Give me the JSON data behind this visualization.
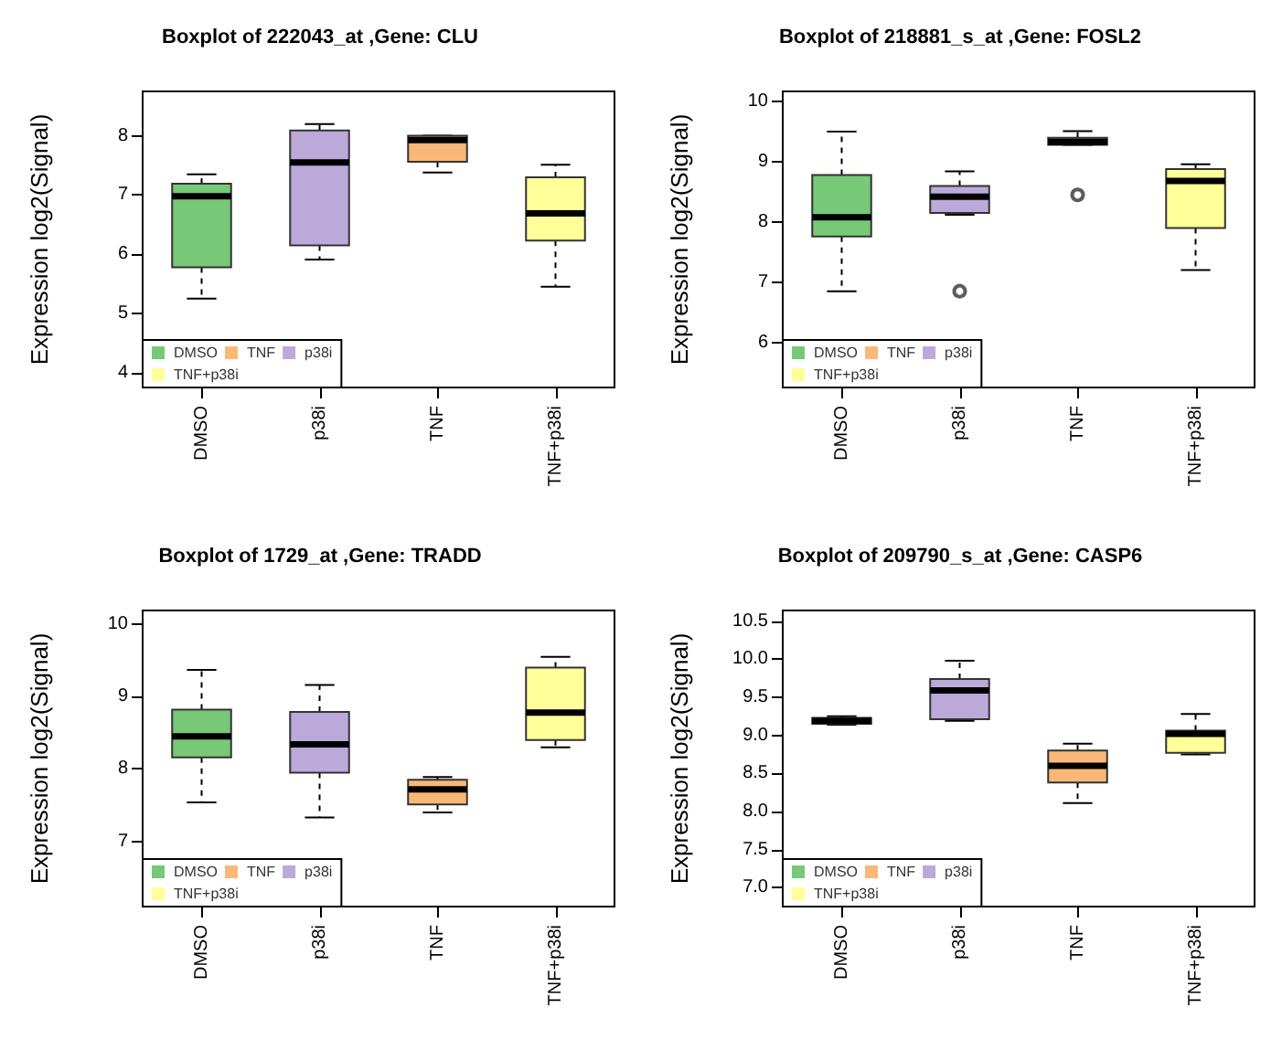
{
  "chart_data": [
    {
      "type": "box",
      "title": "Boxplot of 222043_at ,Gene: CLU",
      "ylabel": "Expression log2(Signal)",
      "categories": [
        "DMSO",
        "p38i",
        "TNF",
        "TNF+p38i"
      ],
      "ylim": [
        3.75,
        8.75
      ],
      "yticks": [
        4,
        5,
        6,
        7,
        8
      ],
      "legend": "bottom left",
      "series": [
        {
          "name": "DMSO",
          "color": "#77c877",
          "boxes": [
            {
              "low": 5.25,
              "q1": 5.78,
              "median": 6.98,
              "q3": 7.19,
              "high": 7.35
            },
            null,
            null,
            null
          ]
        },
        {
          "name": "p38i",
          "color": "#bba9d9",
          "boxes": [
            null,
            {
              "low": 5.91,
              "q1": 6.15,
              "median": 7.55,
              "q3": 8.09,
              "high": 8.2
            },
            null,
            null
          ]
        },
        {
          "name": "TNF",
          "color": "#f9b878",
          "boxes": [
            null,
            null,
            {
              "low": 7.38,
              "q1": 7.56,
              "median": 7.93,
              "q3": 8.0,
              "high": 8.0
            },
            null
          ]
        },
        {
          "name": "TNF+p38i",
          "color": "#ffff99",
          "boxes": [
            null,
            null,
            null,
            {
              "low": 5.45,
              "q1": 6.23,
              "median": 6.69,
              "q3": 7.3,
              "high": 7.51
            }
          ]
        }
      ]
    },
    {
      "type": "box",
      "title": "Boxplot of 218881_s_at ,Gene: FOSL2",
      "ylabel": "Expression log2(Signal)",
      "categories": [
        "DMSO",
        "p38i",
        "TNF",
        "TNF+p38i"
      ],
      "ylim": [
        5.25,
        10.17
      ],
      "yticks": [
        6,
        7,
        8,
        9,
        10
      ],
      "legend": "bottom left",
      "series": [
        {
          "name": "DMSO",
          "color": "#77c877",
          "boxes": [
            {
              "low": 6.85,
              "q1": 7.76,
              "median": 8.08,
              "q3": 8.78,
              "high": 9.5
            },
            null,
            null,
            null
          ]
        },
        {
          "name": "p38i",
          "color": "#bba9d9",
          "boxes": [
            null,
            {
              "low": 8.12,
              "q1": 8.15,
              "median": 8.42,
              "q3": 8.6,
              "high": 8.84,
              "outliers": [
                6.85
              ]
            },
            null,
            null
          ]
        },
        {
          "name": "TNF",
          "color": "#f9b878",
          "boxes": [
            null,
            null,
            {
              "low": 9.28,
              "q1": 9.28,
              "median": 9.33,
              "q3": 9.4,
              "high": 9.51,
              "outliers": [
                8.45
              ]
            },
            null
          ]
        },
        {
          "name": "TNF+p38i",
          "color": "#ffff99",
          "boxes": [
            null,
            null,
            null,
            {
              "low": 7.2,
              "q1": 7.9,
              "median": 8.68,
              "q3": 8.88,
              "high": 8.96
            }
          ]
        }
      ]
    },
    {
      "type": "box",
      "title": "Boxplot of 1729_at ,Gene: TRADD",
      "ylabel": "Expression log2(Signal)",
      "categories": [
        "DMSO",
        "p38i",
        "TNF",
        "TNF+p38i"
      ],
      "ylim": [
        6.1,
        10.19
      ],
      "yticks": [
        7,
        8,
        9,
        10
      ],
      "legend": "bottom left",
      "series": [
        {
          "name": "DMSO",
          "color": "#77c877",
          "boxes": [
            {
              "low": 7.54,
              "q1": 8.16,
              "median": 8.45,
              "q3": 8.82,
              "high": 9.37
            },
            null,
            null,
            null
          ]
        },
        {
          "name": "p38i",
          "color": "#bba9d9",
          "boxes": [
            null,
            {
              "low": 7.33,
              "q1": 7.95,
              "median": 8.34,
              "q3": 8.79,
              "high": 9.16
            },
            null,
            null
          ]
        },
        {
          "name": "TNF",
          "color": "#f9b878",
          "boxes": [
            null,
            null,
            {
              "low": 7.4,
              "q1": 7.51,
              "median": 7.72,
              "q3": 7.85,
              "high": 7.89
            },
            null
          ]
        },
        {
          "name": "TNF+p38i",
          "color": "#ffff99",
          "boxes": [
            null,
            null,
            null,
            {
              "low": 8.3,
              "q1": 8.4,
              "median": 8.78,
              "q3": 9.4,
              "high": 9.55
            }
          ]
        }
      ]
    },
    {
      "type": "box",
      "title": "Boxplot of 209790_s_at ,Gene: CASP6",
      "ylabel": "Expression log2(Signal)",
      "categories": [
        "DMSO",
        "p38i",
        "TNF",
        "TNF+p38i"
      ],
      "ylim": [
        6.75,
        10.64
      ],
      "yticks": [
        {
          "value": 7,
          "label": "7.0"
        },
        {
          "value": 7.5,
          "label": "7.5"
        },
        {
          "value": 8,
          "label": "8.0"
        },
        {
          "value": 8.5,
          "label": "8.5"
        },
        {
          "value": 9,
          "label": "9.0"
        },
        {
          "value": 9.5,
          "label": "9.5"
        },
        {
          "value": 10,
          "label": "10.0"
        },
        {
          "value": 10.5,
          "label": "10.5"
        }
      ],
      "legend": "bottom left",
      "series": [
        {
          "name": "DMSO",
          "color": "#77c877",
          "boxes": [
            {
              "low": 9.14,
              "q1": 9.15,
              "median": 9.19,
              "q3": 9.23,
              "high": 9.25
            },
            null,
            null,
            null
          ]
        },
        {
          "name": "p38i",
          "color": "#bba9d9",
          "boxes": [
            null,
            {
              "low": 9.19,
              "q1": 9.21,
              "median": 9.59,
              "q3": 9.74,
              "high": 9.98
            },
            null,
            null
          ]
        },
        {
          "name": "TNF",
          "color": "#f9b878",
          "boxes": [
            null,
            null,
            {
              "low": 8.11,
              "q1": 8.38,
              "median": 8.6,
              "q3": 8.8,
              "high": 8.89
            },
            null
          ]
        },
        {
          "name": "TNF+p38i",
          "color": "#ffff99",
          "boxes": [
            null,
            null,
            null,
            {
              "low": 8.75,
              "q1": 8.77,
              "median": 9.02,
              "q3": 9.06,
              "high": 9.28
            }
          ]
        }
      ]
    }
  ]
}
